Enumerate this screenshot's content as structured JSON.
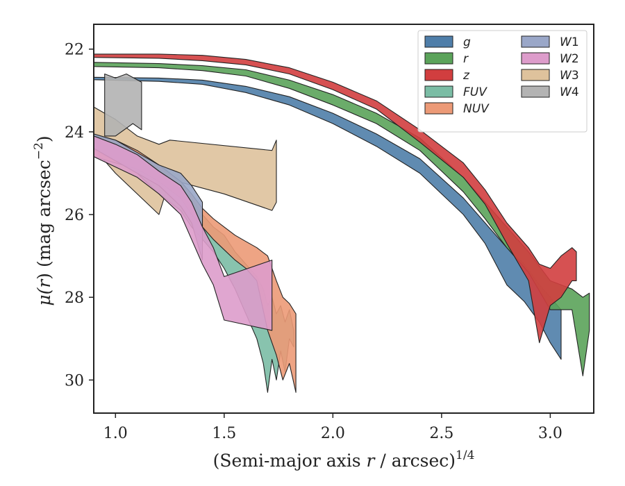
{
  "chart_data": {
    "type": "area",
    "xlabel_main": "(Semi-major axis ",
    "xlabel_var": "r",
    "xlabel_unit": " / arcsec)",
    "xlabel_exp": "1/4",
    "ylabel_mu": "μ(",
    "ylabel_var": "r",
    "ylabel_close": ")",
    "ylabel_unit": " (mag arcsec",
    "ylabel_exp": "−2",
    "ylabel_end": ")",
    "xlim": [
      0.9,
      3.2
    ],
    "ylim": [
      30.8,
      21.4
    ],
    "y_inverted": true,
    "xticks": [
      "1.0",
      "1.5",
      "2.0",
      "2.5",
      "3.0"
    ],
    "xtick_values": [
      1.0,
      1.5,
      2.0,
      2.5,
      3.0
    ],
    "yticks": [
      "22",
      "24",
      "26",
      "28",
      "30"
    ],
    "ytick_values": [
      22,
      24,
      26,
      28,
      30
    ],
    "grid": false,
    "legend_position": "upper-right",
    "legend_columns": 2,
    "series": [
      {
        "name": "W3",
        "color": "#dec29c",
        "upper": [
          [
            0.9,
            23.4
          ],
          [
            1.0,
            23.7
          ],
          [
            1.1,
            24.1
          ],
          [
            1.2,
            24.3
          ],
          [
            1.25,
            24.2
          ],
          [
            1.72,
            24.45
          ],
          [
            1.74,
            24.2
          ]
        ],
        "lower": [
          [
            1.74,
            25.7
          ],
          [
            1.72,
            25.9
          ],
          [
            1.5,
            25.5
          ],
          [
            1.25,
            25.15
          ],
          [
            1.2,
            26.0
          ],
          [
            1.0,
            25.0
          ],
          [
            0.9,
            24.4
          ]
        ]
      },
      {
        "name": "FUV",
        "color": "#7bbda5",
        "upper": [
          [
            0.9,
            24.15
          ],
          [
            1.0,
            24.25
          ],
          [
            1.1,
            24.5
          ],
          [
            1.2,
            24.9
          ],
          [
            1.3,
            25.2
          ],
          [
            1.35,
            25.6
          ],
          [
            1.4,
            26.0
          ],
          [
            1.45,
            26.3
          ],
          [
            1.5,
            26.5
          ],
          [
            1.55,
            26.9
          ],
          [
            1.6,
            27.2
          ],
          [
            1.65,
            27.5
          ],
          [
            1.68,
            27.8
          ],
          [
            1.7,
            28.2
          ],
          [
            1.72,
            28.0
          ],
          [
            1.74,
            28.4
          ],
          [
            1.76,
            28.2
          ],
          [
            1.78,
            28.6
          ],
          [
            1.8,
            28.3
          ],
          [
            1.82,
            28.8
          ]
        ],
        "lower": [
          [
            1.82,
            29.2
          ],
          [
            1.8,
            29.0
          ],
          [
            1.78,
            29.8
          ],
          [
            1.76,
            29.3
          ],
          [
            1.74,
            30.0
          ],
          [
            1.72,
            29.5
          ],
          [
            1.7,
            30.3
          ],
          [
            1.68,
            29.6
          ],
          [
            1.65,
            29.0
          ],
          [
            1.6,
            28.4
          ],
          [
            1.55,
            27.8
          ],
          [
            1.5,
            27.3
          ],
          [
            1.45,
            26.9
          ],
          [
            1.4,
            26.6
          ],
          [
            1.35,
            26.3
          ],
          [
            1.3,
            25.9
          ],
          [
            1.2,
            25.5
          ],
          [
            1.1,
            25.0
          ],
          [
            1.0,
            24.7
          ],
          [
            0.9,
            24.45
          ]
        ]
      },
      {
        "name": "NUV",
        "color": "#ec9a77",
        "upper": [
          [
            0.9,
            24.1
          ],
          [
            1.0,
            24.2
          ],
          [
            1.1,
            24.45
          ],
          [
            1.2,
            24.8
          ],
          [
            1.3,
            25.2
          ],
          [
            1.35,
            25.5
          ],
          [
            1.4,
            25.85
          ],
          [
            1.45,
            26.1
          ],
          [
            1.5,
            26.3
          ],
          [
            1.55,
            26.5
          ],
          [
            1.6,
            26.65
          ],
          [
            1.65,
            26.8
          ],
          [
            1.7,
            27.0
          ],
          [
            1.74,
            27.6
          ],
          [
            1.77,
            28.0
          ],
          [
            1.8,
            28.15
          ],
          [
            1.83,
            28.4
          ]
        ],
        "lower": [
          [
            1.83,
            30.3
          ],
          [
            1.8,
            29.6
          ],
          [
            1.77,
            30.0
          ],
          [
            1.74,
            29.4
          ],
          [
            1.7,
            28.8
          ],
          [
            1.65,
            27.6
          ],
          [
            1.6,
            27.3
          ],
          [
            1.55,
            27.1
          ],
          [
            1.5,
            26.85
          ],
          [
            1.45,
            26.6
          ],
          [
            1.4,
            26.3
          ],
          [
            1.35,
            26.0
          ],
          [
            1.3,
            25.6
          ],
          [
            1.2,
            25.2
          ],
          [
            1.1,
            24.9
          ],
          [
            1.0,
            24.75
          ],
          [
            0.9,
            24.6
          ]
        ]
      },
      {
        "name": "W1",
        "color": "#9aa7c8",
        "upper": [
          [
            0.9,
            24.05
          ],
          [
            1.0,
            24.2
          ],
          [
            1.1,
            24.5
          ],
          [
            1.2,
            24.8
          ],
          [
            1.3,
            25.0
          ],
          [
            1.35,
            25.3
          ],
          [
            1.4,
            25.7
          ]
        ],
        "lower": [
          [
            1.4,
            27.1
          ],
          [
            1.35,
            26.2
          ],
          [
            1.3,
            25.8
          ],
          [
            1.2,
            25.3
          ],
          [
            1.1,
            25.0
          ],
          [
            1.0,
            24.7
          ],
          [
            0.9,
            24.4
          ]
        ]
      },
      {
        "name": "W2",
        "color": "#dd9ccb",
        "upper": [
          [
            0.9,
            24.1
          ],
          [
            1.0,
            24.3
          ],
          [
            1.1,
            24.55
          ],
          [
            1.2,
            24.95
          ],
          [
            1.3,
            25.3
          ],
          [
            1.35,
            25.7
          ],
          [
            1.4,
            26.3
          ],
          [
            1.45,
            26.8
          ],
          [
            1.5,
            27.5
          ],
          [
            1.72,
            27.1
          ]
        ],
        "lower": [
          [
            1.72,
            28.8
          ],
          [
            1.5,
            28.55
          ],
          [
            1.45,
            27.7
          ],
          [
            1.4,
            27.2
          ],
          [
            1.35,
            26.6
          ],
          [
            1.3,
            26.0
          ],
          [
            1.2,
            25.5
          ],
          [
            1.1,
            25.1
          ],
          [
            1.0,
            24.85
          ],
          [
            0.9,
            24.6
          ]
        ]
      },
      {
        "name": "g",
        "color": "#4f7ea9",
        "upper": [
          [
            0.9,
            22.68
          ],
          [
            1.2,
            22.7
          ],
          [
            1.4,
            22.75
          ],
          [
            1.6,
            22.9
          ],
          [
            1.8,
            23.15
          ],
          [
            2.0,
            23.55
          ],
          [
            2.2,
            24.05
          ],
          [
            2.4,
            24.65
          ],
          [
            2.6,
            25.6
          ],
          [
            2.7,
            26.2
          ],
          [
            2.8,
            26.8
          ],
          [
            2.88,
            27.2
          ],
          [
            2.95,
            27.7
          ],
          [
            3.0,
            28.0
          ],
          [
            3.05,
            28.3
          ]
        ],
        "lower": [
          [
            3.05,
            29.5
          ],
          [
            3.0,
            29.1
          ],
          [
            2.95,
            28.6
          ],
          [
            2.88,
            28.1
          ],
          [
            2.8,
            27.7
          ],
          [
            2.7,
            26.7
          ],
          [
            2.6,
            26.0
          ],
          [
            2.4,
            25.0
          ],
          [
            2.2,
            24.35
          ],
          [
            2.0,
            23.8
          ],
          [
            1.8,
            23.35
          ],
          [
            1.6,
            23.05
          ],
          [
            1.4,
            22.85
          ],
          [
            1.2,
            22.78
          ],
          [
            0.9,
            22.74
          ]
        ]
      },
      {
        "name": "r",
        "color": "#5ba35a",
        "upper": [
          [
            0.9,
            22.32
          ],
          [
            1.2,
            22.35
          ],
          [
            1.4,
            22.4
          ],
          [
            1.6,
            22.5
          ],
          [
            1.8,
            22.75
          ],
          [
            2.0,
            23.1
          ],
          [
            2.2,
            23.55
          ],
          [
            2.4,
            24.15
          ],
          [
            2.6,
            25.1
          ],
          [
            2.7,
            25.7
          ],
          [
            2.8,
            26.3
          ],
          [
            2.9,
            26.9
          ],
          [
            3.0,
            27.6
          ],
          [
            3.1,
            27.8
          ],
          [
            3.15,
            28.0
          ],
          [
            3.18,
            27.9
          ]
        ],
        "lower": [
          [
            3.18,
            28.8
          ],
          [
            3.15,
            29.9
          ],
          [
            3.1,
            28.3
          ],
          [
            3.0,
            28.3
          ],
          [
            2.9,
            27.4
          ],
          [
            2.8,
            26.8
          ],
          [
            2.7,
            26.1
          ],
          [
            2.6,
            25.45
          ],
          [
            2.4,
            24.45
          ],
          [
            2.2,
            23.8
          ],
          [
            2.0,
            23.35
          ],
          [
            1.8,
            22.95
          ],
          [
            1.6,
            22.65
          ],
          [
            1.4,
            22.52
          ],
          [
            1.2,
            22.45
          ],
          [
            0.9,
            22.42
          ]
        ]
      },
      {
        "name": "z",
        "color": "#d13e3f",
        "upper": [
          [
            0.9,
            22.12
          ],
          [
            1.2,
            22.12
          ],
          [
            1.4,
            22.15
          ],
          [
            1.6,
            22.25
          ],
          [
            1.8,
            22.45
          ],
          [
            2.0,
            22.8
          ],
          [
            2.2,
            23.25
          ],
          [
            2.4,
            23.95
          ],
          [
            2.6,
            24.75
          ],
          [
            2.7,
            25.4
          ],
          [
            2.8,
            26.2
          ],
          [
            2.9,
            26.8
          ],
          [
            2.95,
            27.2
          ],
          [
            3.0,
            27.3
          ],
          [
            3.05,
            27.0
          ],
          [
            3.1,
            26.8
          ],
          [
            3.12,
            26.9
          ]
        ],
        "lower": [
          [
            3.12,
            27.6
          ],
          [
            3.1,
            27.6
          ],
          [
            3.05,
            28.0
          ],
          [
            3.0,
            28.2
          ],
          [
            2.95,
            29.1
          ],
          [
            2.9,
            27.6
          ],
          [
            2.8,
            26.7
          ],
          [
            2.7,
            25.75
          ],
          [
            2.6,
            25.1
          ],
          [
            2.4,
            24.25
          ],
          [
            2.2,
            23.45
          ],
          [
            2.0,
            22.98
          ],
          [
            1.8,
            22.6
          ],
          [
            1.6,
            22.38
          ],
          [
            1.4,
            22.28
          ],
          [
            1.2,
            22.22
          ],
          [
            0.9,
            22.2
          ]
        ]
      },
      {
        "name": "W4",
        "color": "#b3b3b3",
        "upper": [
          [
            0.95,
            22.6
          ],
          [
            1.0,
            22.7
          ],
          [
            1.05,
            22.6
          ],
          [
            1.12,
            22.8
          ]
        ],
        "lower": [
          [
            1.12,
            23.95
          ],
          [
            1.08,
            23.8
          ],
          [
            1.0,
            24.1
          ],
          [
            0.95,
            24.1
          ]
        ]
      }
    ]
  }
}
